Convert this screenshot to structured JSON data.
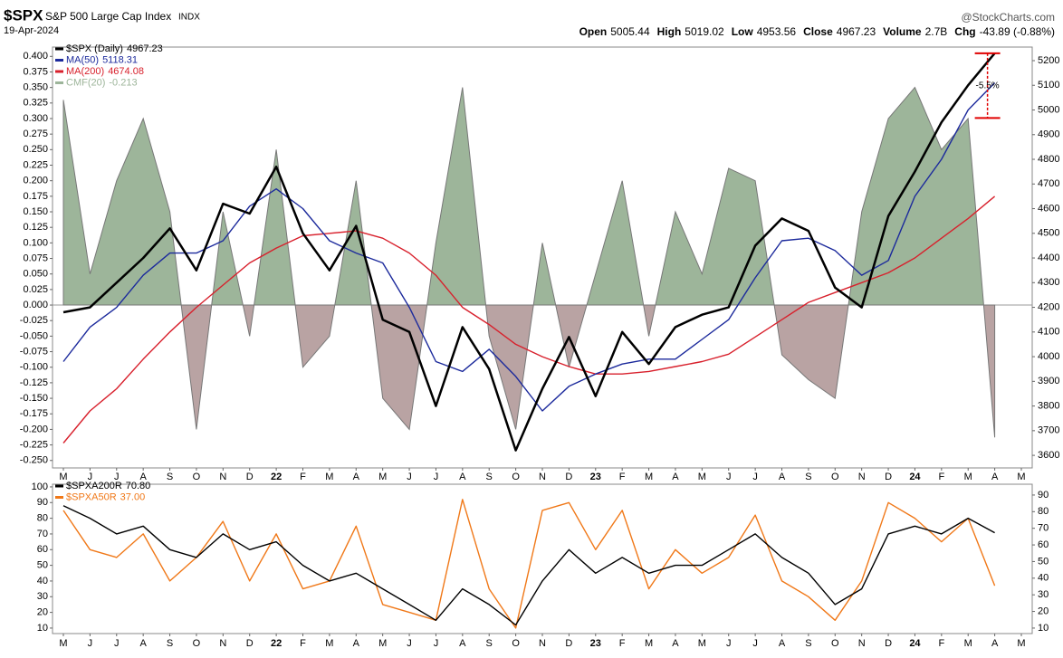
{
  "chart_data": [
    {
      "type": "line",
      "title": "$SPX",
      "subtitle": "S&P 500 Large Cap Index",
      "exchange": "INDX",
      "date": "19-Apr-2024",
      "source": "@StockCharts.com",
      "quote": [
        {
          "label": "Open",
          "value": 5005.44
        },
        {
          "label": "High",
          "value": 5019.02
        },
        {
          "label": "Low",
          "value": 4953.56
        },
        {
          "label": "Close",
          "value": 4967.23
        },
        {
          "label": "Volume",
          "value": "2.7B"
        },
        {
          "label": "Chg",
          "value": "-43.89 (-0.88%)"
        }
      ],
      "annotations": [
        {
          "text": "-5.5%",
          "color": "#e00000"
        }
      ],
      "categories": [
        "M",
        "J",
        "J",
        "A",
        "S",
        "O",
        "N",
        "D",
        "22",
        "F",
        "M",
        "A",
        "M",
        "J",
        "J",
        "A",
        "S",
        "O",
        "N",
        "D",
        "23",
        "F",
        "M",
        "A",
        "M",
        "J",
        "J",
        "A",
        "S",
        "O",
        "N",
        "D",
        "24",
        "F",
        "M",
        "A",
        "M"
      ],
      "ylim": [
        -0.262,
        0.415
      ],
      "yticks": [
        {
          "value": 0.4,
          "label": "0.400"
        },
        {
          "value": 0.375,
          "label": "0.375"
        },
        {
          "value": 0.35,
          "label": "0.350"
        },
        {
          "value": 0.325,
          "label": "0.325"
        },
        {
          "value": 0.3,
          "label": "0.300"
        },
        {
          "value": 0.275,
          "label": "0.275"
        },
        {
          "value": 0.25,
          "label": "0.250"
        },
        {
          "value": 0.225,
          "label": "0.225"
        },
        {
          "value": 0.2,
          "label": "0.200"
        },
        {
          "value": 0.175,
          "label": "0.175"
        },
        {
          "value": 0.15,
          "label": "0.150"
        },
        {
          "value": 0.125,
          "label": "0.125"
        },
        {
          "value": 0.1,
          "label": "0.100"
        },
        {
          "value": 0.075,
          "label": "0.075"
        },
        {
          "value": 0.05,
          "label": "0.050"
        },
        {
          "value": 0.025,
          "label": "0.025"
        },
        {
          "value": 0,
          "label": "0.000"
        },
        {
          "value": -0.025,
          "label": "-0.025"
        },
        {
          "value": -0.05,
          "label": "-0.050"
        },
        {
          "value": -0.075,
          "label": "-0.075"
        },
        {
          "value": -0.1,
          "label": "-0.100"
        },
        {
          "value": -0.125,
          "label": "-0.125"
        },
        {
          "value": -0.15,
          "label": "-0.150"
        },
        {
          "value": -0.175,
          "label": "-0.175"
        },
        {
          "value": -0.2,
          "label": "-0.200"
        },
        {
          "value": -0.225,
          "label": "-0.225"
        },
        {
          "value": -0.25,
          "label": "-0.250"
        }
      ],
      "y2lim": [
        3549,
        5255
      ],
      "y2ticks": [
        3600,
        3700,
        3800,
        3900,
        4000,
        4100,
        4200,
        4300,
        4400,
        4500,
        4600,
        4700,
        4800,
        4900,
        5000,
        5100,
        5200
      ],
      "series": [
        {
          "name": "CMF(20)",
          "last": "-0.213",
          "color": "#9db59a",
          "negative_color": "#b9a3a3",
          "style": "area",
          "axis": "y",
          "values": [
            0.33,
            0.05,
            0.2,
            0.3,
            0.15,
            -0.2,
            0.15,
            -0.05,
            0.25,
            -0.1,
            -0.05,
            0.2,
            -0.15,
            -0.2,
            0.1,
            0.35,
            -0.05,
            -0.2,
            0.1,
            -0.1,
            0.05,
            0.2,
            -0.05,
            0.15,
            0.05,
            0.22,
            0.2,
            -0.08,
            -0.12,
            -0.15,
            0.15,
            0.3,
            0.35,
            0.25,
            0.3,
            -0.213,
            null
          ]
        },
        {
          "name": "MA(200)",
          "last": "4674.08",
          "color": "#d8202c",
          "axis": "y2",
          "values": [
            3650,
            3780,
            3870,
            3990,
            4100,
            4200,
            4290,
            4380,
            4440,
            4490,
            4500,
            4510,
            4480,
            4420,
            4330,
            4200,
            4130,
            4050,
            4000,
            3960,
            3930,
            3930,
            3940,
            3960,
            3980,
            4010,
            4080,
            4150,
            4220,
            4260,
            4300,
            4340,
            4400,
            4480,
            4560,
            4650,
            null
          ]
        },
        {
          "name": "MA(50)",
          "last": "5118.31",
          "color": "#1c2a9c",
          "axis": "y2",
          "values": [
            3980,
            4120,
            4200,
            4330,
            4420,
            4420,
            4470,
            4610,
            4680,
            4600,
            4470,
            4420,
            4380,
            4200,
            3980,
            3940,
            4030,
            3920,
            3780,
            3880,
            3930,
            3970,
            3990,
            3990,
            4070,
            4150,
            4320,
            4470,
            4480,
            4430,
            4330,
            4390,
            4650,
            4800,
            5000,
            5110,
            null
          ]
        },
        {
          "name": "$SPX (Daily)",
          "last": "4967.23",
          "color": "#000000",
          "width": 2.5,
          "axis": "y2",
          "values": [
            4180,
            4200,
            4300,
            4400,
            4520,
            4350,
            4620,
            4580,
            4770,
            4500,
            4350,
            4530,
            4150,
            4100,
            3800,
            4120,
            3950,
            3620,
            3870,
            4080,
            3840,
            4100,
            3970,
            4120,
            4170,
            4200,
            4450,
            4560,
            4510,
            4280,
            4200,
            4570,
            4750,
            4950,
            5100,
            5230,
            null
          ]
        }
      ]
    },
    {
      "type": "line",
      "categories": [
        "M",
        "J",
        "J",
        "A",
        "S",
        "O",
        "N",
        "D",
        "22",
        "F",
        "M",
        "A",
        "M",
        "J",
        "J",
        "A",
        "S",
        "O",
        "N",
        "D",
        "23",
        "F",
        "M",
        "A",
        "M",
        "J",
        "J",
        "A",
        "S",
        "O",
        "N",
        "D",
        "24",
        "F",
        "M",
        "A",
        "M"
      ],
      "ylim": [
        6.5,
        101.7
      ],
      "yticks": [
        10,
        20,
        30,
        40,
        50,
        60,
        70,
        80,
        90,
        100
      ],
      "y2lim": [
        6.7,
        96.5
      ],
      "y2ticks": [
        10,
        20,
        30,
        40,
        50,
        60,
        70,
        80,
        90
      ],
      "series": [
        {
          "name": "$SPXA50R",
          "last": "37.00",
          "color": "#f07818",
          "axis": "y",
          "values": [
            85,
            60,
            55,
            70,
            40,
            55,
            78,
            40,
            70,
            35,
            40,
            75,
            25,
            20,
            15,
            92,
            35,
            10,
            85,
            90,
            60,
            85,
            35,
            60,
            45,
            55,
            82,
            40,
            30,
            15,
            40,
            90,
            80,
            65,
            80,
            37,
            null
          ]
        },
        {
          "name": "$SPXA200R",
          "last": "70.80",
          "color": "#000000",
          "axis": "y",
          "values": [
            88,
            80,
            70,
            75,
            60,
            55,
            70,
            60,
            65,
            50,
            40,
            45,
            35,
            25,
            15,
            35,
            25,
            12,
            40,
            60,
            45,
            55,
            45,
            50,
            50,
            60,
            70,
            55,
            45,
            25,
            35,
            70,
            75,
            70,
            80,
            70.8,
            null
          ]
        }
      ]
    }
  ]
}
